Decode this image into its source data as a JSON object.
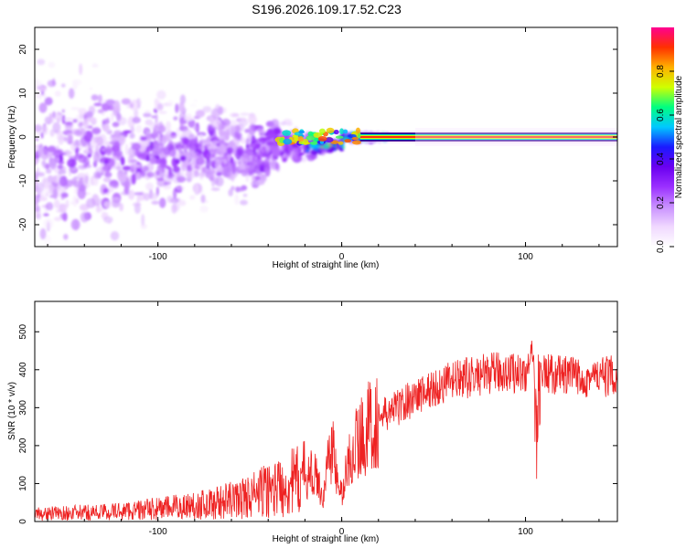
{
  "title": "S196.2026.109.17.52.C23",
  "chart_data": [
    {
      "type": "heatmap",
      "xlabel": "Height of straight line (km)",
      "ylabel": "Frequency (Hz)",
      "xlim": [
        -167,
        150
      ],
      "ylim": [
        -25,
        25
      ],
      "xticks": [
        -100,
        0,
        100
      ],
      "xtick_labels": [
        "-100",
        "0",
        "100"
      ],
      "yticks": [
        -20,
        -10,
        0,
        10,
        20
      ],
      "ytick_labels": [
        "-20",
        "-10",
        "0",
        "10",
        "20"
      ],
      "colorbar": {
        "label": "Normalized spectral amplitude",
        "range": [
          0,
          1
        ],
        "ticks": [
          0.0,
          0.2,
          0.4,
          0.6,
          0.8
        ],
        "tick_labels": [
          "0.0",
          "0.2",
          "0.4",
          "0.6",
          "0.8"
        ],
        "colormap": [
          "#ffffff",
          "#f0d8ff",
          "#c890ff",
          "#9b30ff",
          "#6a00f0",
          "#1a1aff",
          "#00c8ff",
          "#00ff80",
          "#d0ff00",
          "#ffb000",
          "#ff3000",
          "#ff0090"
        ]
      },
      "description_points": [
        {
          "x": -150,
          "spread_hz": 25,
          "peak_amp": 0.12
        },
        {
          "x": -100,
          "spread_hz": 18,
          "peak_amp": 0.15
        },
        {
          "x": -50,
          "spread_hz": 12,
          "peak_amp": 0.2
        },
        {
          "x": -20,
          "spread_hz": 4,
          "peak_amp": 0.5
        },
        {
          "x": 0,
          "spread_hz": 1.5,
          "peak_amp": 0.8
        },
        {
          "x": 50,
          "spread_hz": 1,
          "peak_amp": 0.95
        },
        {
          "x": 100,
          "spread_hz": 1.5,
          "peak_amp": 0.95
        },
        {
          "x": 150,
          "spread_hz": 1,
          "peak_amp": 0.95
        }
      ]
    },
    {
      "type": "line",
      "xlabel": "Height of straight line (km)",
      "ylabel": "SNR (10 * v/v)",
      "xlim": [
        -167,
        150
      ],
      "ylim": [
        0,
        580
      ],
      "xticks": [
        -100,
        0,
        100
      ],
      "xtick_labels": [
        "-100",
        "0",
        "100"
      ],
      "yticks": [
        0,
        100,
        200,
        300,
        400,
        500
      ],
      "ytick_labels": [
        "0",
        "100",
        "200",
        "300",
        "400",
        "500"
      ],
      "color": "#ee2222",
      "series": [
        {
          "name": "SNR",
          "x": [
            -167,
            -150,
            -130,
            -110,
            -90,
            -70,
            -55,
            -45,
            -35,
            -25,
            -20,
            -15,
            -12,
            -10,
            -7,
            -5,
            -3,
            0,
            3,
            5,
            10,
            15,
            20,
            30,
            40,
            50,
            60,
            70,
            80,
            90,
            100,
            104,
            106,
            108,
            110,
            120,
            130,
            140,
            150
          ],
          "y": [
            20,
            22,
            25,
            30,
            38,
            48,
            60,
            75,
            90,
            105,
            115,
            130,
            90,
            60,
            180,
            200,
            120,
            70,
            140,
            180,
            220,
            250,
            270,
            300,
            330,
            350,
            370,
            380,
            390,
            395,
            390,
            430,
            250,
            400,
            390,
            385,
            380,
            380,
            385
          ]
        }
      ]
    }
  ]
}
